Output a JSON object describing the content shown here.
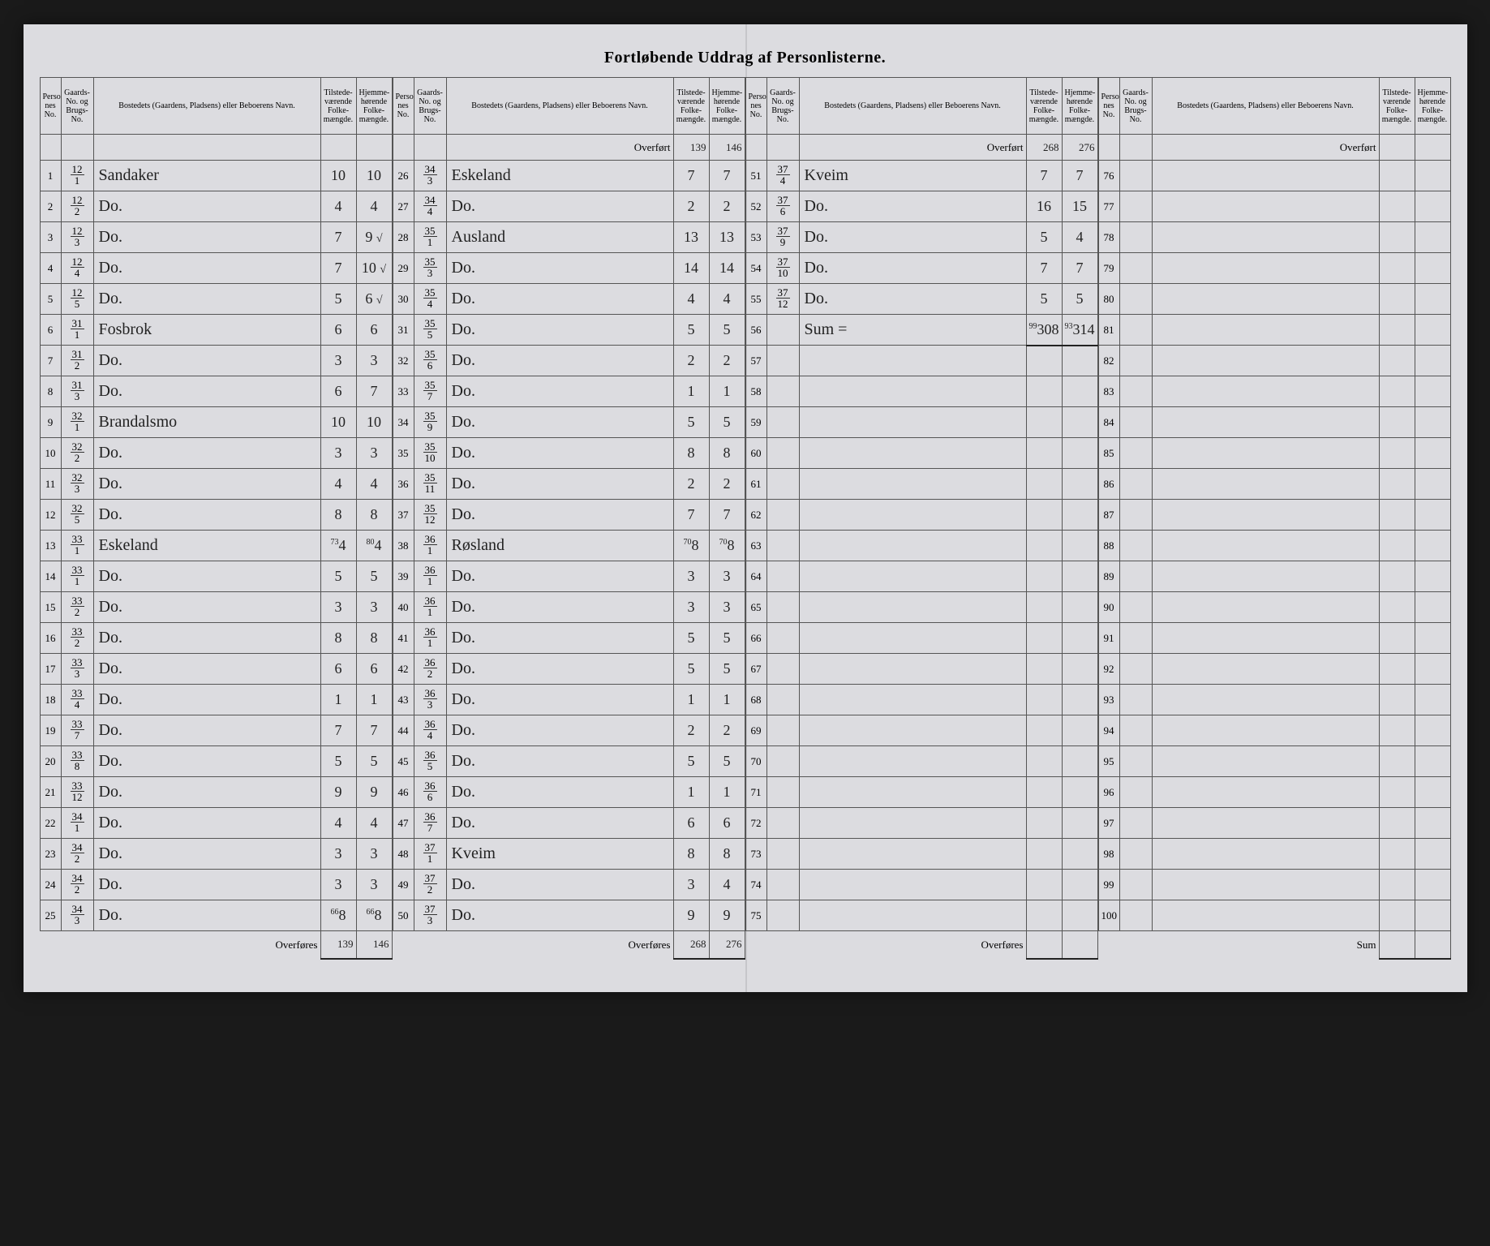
{
  "title": "Fortløbende Uddrag af Personlisterne.",
  "headers": {
    "person": "Personlister-nes No.",
    "gaard": "Gaards-No. og Brugs-No.",
    "name": "Bostedets (Gaardens, Pladsens) eller Beboerens Navn.",
    "tilstede": "Tilstede-værende Folke-mængde.",
    "hjemme": "Hjemme-hørende Folke-mængde."
  },
  "overfort_label": "Overført",
  "overfores_label": "Overføres",
  "sum_label": "Sum",
  "section1": {
    "rows": [
      {
        "p": "1",
        "g_top": "12",
        "g_bot": "1",
        "name": "Sandaker",
        "t": "10",
        "h": "10"
      },
      {
        "p": "2",
        "g_top": "12",
        "g_bot": "2",
        "name": "Do.",
        "t": "4",
        "h": "4"
      },
      {
        "p": "3",
        "g_top": "12",
        "g_bot": "3",
        "name": "Do.",
        "t": "7",
        "h": "9",
        "chk": "√"
      },
      {
        "p": "4",
        "g_top": "12",
        "g_bot": "4",
        "name": "Do.",
        "t": "7",
        "h": "10",
        "chk": "√"
      },
      {
        "p": "5",
        "g_top": "12",
        "g_bot": "5",
        "name": "Do.",
        "t": "5",
        "h": "6",
        "chk": "√"
      },
      {
        "p": "6",
        "g_top": "31",
        "g_bot": "1",
        "name": "Fosbrok",
        "t": "6",
        "h": "6"
      },
      {
        "p": "7",
        "g_top": "31",
        "g_bot": "2",
        "name": "Do.",
        "t": "3",
        "h": "3"
      },
      {
        "p": "8",
        "g_top": "31",
        "g_bot": "3",
        "name": "Do.",
        "t": "6",
        "h": "7"
      },
      {
        "p": "9",
        "g_top": "32",
        "g_bot": "1",
        "name": "Brandalsmo",
        "t": "10",
        "h": "10"
      },
      {
        "p": "10",
        "g_top": "32",
        "g_bot": "2",
        "name": "Do.",
        "t": "3",
        "h": "3"
      },
      {
        "p": "11",
        "g_top": "32",
        "g_bot": "3",
        "name": "Do.",
        "t": "4",
        "h": "4"
      },
      {
        "p": "12",
        "g_top": "32",
        "g_bot": "5",
        "name": "Do.",
        "t": "8",
        "h": "8"
      },
      {
        "p": "13",
        "g_top": "33",
        "g_bot": "1",
        "name": "Eskeland",
        "t": "4",
        "h": "4",
        "t_sup": "73",
        "h_sup": "80"
      },
      {
        "p": "14",
        "g_top": "33",
        "g_bot": "1",
        "name": "Do.",
        "t": "5",
        "h": "5"
      },
      {
        "p": "15",
        "g_top": "33",
        "g_bot": "2",
        "name": "Do.",
        "t": "3",
        "h": "3"
      },
      {
        "p": "16",
        "g_top": "33",
        "g_bot": "2",
        "name": "Do.",
        "t": "8",
        "h": "8"
      },
      {
        "p": "17",
        "g_top": "33",
        "g_bot": "3",
        "name": "Do.",
        "t": "6",
        "h": "6"
      },
      {
        "p": "18",
        "g_top": "33",
        "g_bot": "4",
        "name": "Do.",
        "t": "1",
        "h": "1"
      },
      {
        "p": "19",
        "g_top": "33",
        "g_bot": "7",
        "name": "Do.",
        "t": "7",
        "h": "7"
      },
      {
        "p": "20",
        "g_top": "33",
        "g_bot": "8",
        "name": "Do.",
        "t": "5",
        "h": "5"
      },
      {
        "p": "21",
        "g_top": "33",
        "g_bot": "12",
        "name": "Do.",
        "t": "9",
        "h": "9"
      },
      {
        "p": "22",
        "g_top": "34",
        "g_bot": "1",
        "name": "Do.",
        "t": "4",
        "h": "4"
      },
      {
        "p": "23",
        "g_top": "34",
        "g_bot": "2",
        "name": "Do.",
        "t": "3",
        "h": "3"
      },
      {
        "p": "24",
        "g_top": "34",
        "g_bot": "2",
        "name": "Do.",
        "t": "3",
        "h": "3"
      },
      {
        "p": "25",
        "g_top": "34",
        "g_bot": "3",
        "name": "Do.",
        "t": "8",
        "h": "8",
        "t_sup": "66",
        "h_sup": "66"
      }
    ],
    "overfores_t": "139",
    "overfores_h": "146"
  },
  "section2": {
    "overfort_t": "139",
    "overfort_h": "146",
    "rows": [
      {
        "p": "26",
        "g_top": "34",
        "g_bot": "3",
        "name": "Eskeland",
        "t": "7",
        "h": "7"
      },
      {
        "p": "27",
        "g_top": "34",
        "g_bot": "4",
        "name": "Do.",
        "t": "2",
        "h": "2"
      },
      {
        "p": "28",
        "g_top": "35",
        "g_bot": "1",
        "name": "Ausland",
        "t": "13",
        "h": "13"
      },
      {
        "p": "29",
        "g_top": "35",
        "g_bot": "3",
        "name": "Do.",
        "t": "14",
        "h": "14"
      },
      {
        "p": "30",
        "g_top": "35",
        "g_bot": "4",
        "name": "Do.",
        "t": "4",
        "h": "4"
      },
      {
        "p": "31",
        "g_top": "35",
        "g_bot": "5",
        "name": "Do.",
        "t": "5",
        "h": "5"
      },
      {
        "p": "32",
        "g_top": "35",
        "g_bot": "6",
        "name": "Do.",
        "t": "2",
        "h": "2"
      },
      {
        "p": "33",
        "g_top": "35",
        "g_bot": "7",
        "name": "Do.",
        "t": "1",
        "h": "1"
      },
      {
        "p": "34",
        "g_top": "35",
        "g_bot": "9",
        "name": "Do.",
        "t": "5",
        "h": "5"
      },
      {
        "p": "35",
        "g_top": "35",
        "g_bot": "10",
        "name": "Do.",
        "t": "8",
        "h": "8"
      },
      {
        "p": "36",
        "g_top": "35",
        "g_bot": "11",
        "name": "Do.",
        "t": "2",
        "h": "2"
      },
      {
        "p": "37",
        "g_top": "35",
        "g_bot": "12",
        "name": "Do.",
        "t": "7",
        "h": "7"
      },
      {
        "p": "38",
        "g_top": "36",
        "g_bot": "1",
        "name": "Røsland",
        "t": "8",
        "h": "8",
        "t_sup": "70",
        "h_sup": "70"
      },
      {
        "p": "39",
        "g_top": "36",
        "g_bot": "1",
        "name": "Do.",
        "t": "3",
        "h": "3"
      },
      {
        "p": "40",
        "g_top": "36",
        "g_bot": "1",
        "name": "Do.",
        "t": "3",
        "h": "3"
      },
      {
        "p": "41",
        "g_top": "36",
        "g_bot": "1",
        "name": "Do.",
        "t": "5",
        "h": "5"
      },
      {
        "p": "42",
        "g_top": "36",
        "g_bot": "2",
        "name": "Do.",
        "t": "5",
        "h": "5"
      },
      {
        "p": "43",
        "g_top": "36",
        "g_bot": "3",
        "name": "Do.",
        "t": "1",
        "h": "1"
      },
      {
        "p": "44",
        "g_top": "36",
        "g_bot": "4",
        "name": "Do.",
        "t": "2",
        "h": "2"
      },
      {
        "p": "45",
        "g_top": "36",
        "g_bot": "5",
        "name": "Do.",
        "t": "5",
        "h": "5"
      },
      {
        "p": "46",
        "g_top": "36",
        "g_bot": "6",
        "name": "Do.",
        "t": "1",
        "h": "1"
      },
      {
        "p": "47",
        "g_top": "36",
        "g_bot": "7",
        "name": "Do.",
        "t": "6",
        "h": "6"
      },
      {
        "p": "48",
        "g_top": "37",
        "g_bot": "1",
        "name": "Kveim",
        "t": "8",
        "h": "8"
      },
      {
        "p": "49",
        "g_top": "37",
        "g_bot": "2",
        "name": "Do.",
        "t": "3",
        "h": "4"
      },
      {
        "p": "50",
        "g_top": "37",
        "g_bot": "3",
        "name": "Do.",
        "t": "9",
        "h": "9"
      }
    ],
    "overfores_t": "268",
    "overfores_h": "276"
  },
  "section3": {
    "overfort_t": "268",
    "overfort_h": "276",
    "rows": [
      {
        "p": "51",
        "g_top": "37",
        "g_bot": "4",
        "name": "Kveim",
        "t": "7",
        "h": "7"
      },
      {
        "p": "52",
        "g_top": "37",
        "g_bot": "6",
        "name": "Do.",
        "t": "16",
        "h": "15"
      },
      {
        "p": "53",
        "g_top": "37",
        "g_bot": "9",
        "name": "Do.",
        "t": "5",
        "h": "4"
      },
      {
        "p": "54",
        "g_top": "37",
        "g_bot": "10",
        "name": "Do.",
        "t": "7",
        "h": "7"
      },
      {
        "p": "55",
        "g_top": "37",
        "g_bot": "12",
        "name": "Do.",
        "t": "5",
        "h": "5"
      },
      {
        "p": "56",
        "g_top": "",
        "g_bot": "",
        "name": "Sum =",
        "t": "308",
        "h": "314",
        "sum": true,
        "t_sup": "99",
        "h_sup": "93"
      },
      {
        "p": "57"
      },
      {
        "p": "58"
      },
      {
        "p": "59"
      },
      {
        "p": "60"
      },
      {
        "p": "61"
      },
      {
        "p": "62"
      },
      {
        "p": "63"
      },
      {
        "p": "64"
      },
      {
        "p": "65"
      },
      {
        "p": "66"
      },
      {
        "p": "67"
      },
      {
        "p": "68"
      },
      {
        "p": "69"
      },
      {
        "p": "70"
      },
      {
        "p": "71"
      },
      {
        "p": "72"
      },
      {
        "p": "73"
      },
      {
        "p": "74"
      },
      {
        "p": "75"
      }
    ],
    "overfores_label": "Overføres"
  },
  "section4": {
    "rows": [
      {
        "p": "76"
      },
      {
        "p": "77"
      },
      {
        "p": "78"
      },
      {
        "p": "79"
      },
      {
        "p": "80"
      },
      {
        "p": "81"
      },
      {
        "p": "82"
      },
      {
        "p": "83"
      },
      {
        "p": "84"
      },
      {
        "p": "85"
      },
      {
        "p": "86"
      },
      {
        "p": "87"
      },
      {
        "p": "88"
      },
      {
        "p": "89"
      },
      {
        "p": "90"
      },
      {
        "p": "91"
      },
      {
        "p": "92"
      },
      {
        "p": "93"
      },
      {
        "p": "94"
      },
      {
        "p": "95"
      },
      {
        "p": "96"
      },
      {
        "p": "97"
      },
      {
        "p": "98"
      },
      {
        "p": "99"
      },
      {
        "p": "100"
      }
    ],
    "sum_label": "Sum"
  }
}
